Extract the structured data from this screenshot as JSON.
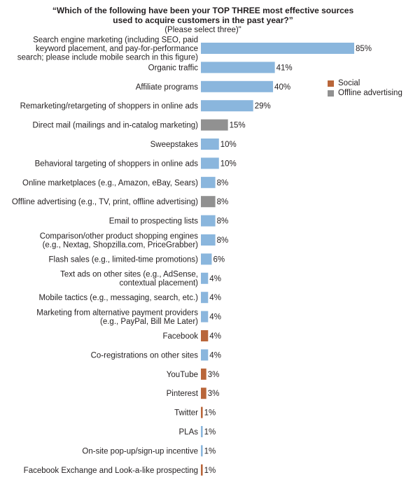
{
  "title_line1": "“Which of the following have been your TOP THREE most effective sources",
  "title_line2": "used to acquire customers in the past year?”",
  "subtitle": "(Please select three)\"",
  "colors": {
    "default": "#8ab6dd",
    "social": "#b9663a",
    "offline": "#919191"
  },
  "legend": [
    {
      "label": "Social",
      "color": "#b9663a"
    },
    {
      "label": "Offline advertising",
      "color": "#919191"
    }
  ],
  "chart_data": {
    "type": "bar",
    "orientation": "horizontal",
    "unit": "%",
    "xlim": [
      0,
      85
    ],
    "grid": false,
    "legend_position": "top-right",
    "bars": [
      {
        "label": [
          "Search engine marketing (including SEO, paid",
          "keyword placement, and pay-for-performance",
          "search; please include mobile search in this figure)"
        ],
        "value": 85,
        "group": "default"
      },
      {
        "label": [
          "Organic traffic"
        ],
        "value": 41,
        "group": "default"
      },
      {
        "label": [
          "Affiliate programs"
        ],
        "value": 40,
        "group": "default"
      },
      {
        "label": [
          "Remarketing/retargeting of shoppers in online ads"
        ],
        "value": 29,
        "group": "default"
      },
      {
        "label": [
          "Direct mail (mailings and in-catalog marketing)"
        ],
        "value": 15,
        "group": "offline"
      },
      {
        "label": [
          "Sweepstakes"
        ],
        "value": 10,
        "group": "default"
      },
      {
        "label": [
          "Behavioral targeting of shoppers in online ads"
        ],
        "value": 10,
        "group": "default"
      },
      {
        "label": [
          "Online marketplaces (e.g., Amazon, eBay, Sears)"
        ],
        "value": 8,
        "group": "default"
      },
      {
        "label": [
          "Offline advertising (e.g., TV, print, offline advertising)"
        ],
        "value": 8,
        "group": "offline"
      },
      {
        "label": [
          "Email to prospecting lists"
        ],
        "value": 8,
        "group": "default"
      },
      {
        "label": [
          "Comparison/other product shopping engines",
          "(e.g., Nextag, Shopzilla.com, PriceGrabber)"
        ],
        "value": 8,
        "group": "default"
      },
      {
        "label": [
          "Flash sales (e.g., limited-time promotions)"
        ],
        "value": 6,
        "group": "default"
      },
      {
        "label": [
          "Text ads on other sites (e.g., AdSense,",
          "contextual placement)"
        ],
        "value": 4,
        "group": "default"
      },
      {
        "label": [
          "Mobile tactics (e.g., messaging, search, etc.)"
        ],
        "value": 4,
        "group": "default"
      },
      {
        "label": [
          "Marketing from alternative payment providers",
          "(e.g., PayPal, Bill Me Later)"
        ],
        "value": 4,
        "group": "default"
      },
      {
        "label": [
          "Facebook"
        ],
        "value": 4,
        "group": "social"
      },
      {
        "label": [
          "Co-registrations on other sites"
        ],
        "value": 4,
        "group": "default"
      },
      {
        "label": [
          "YouTube"
        ],
        "value": 3,
        "group": "social"
      },
      {
        "label": [
          "Pinterest"
        ],
        "value": 3,
        "group": "social"
      },
      {
        "label": [
          "Twitter"
        ],
        "value": 1,
        "group": "social"
      },
      {
        "label": [
          "PLAs"
        ],
        "value": 1,
        "group": "default"
      },
      {
        "label": [
          "On-site pop-up/sign-up incentive"
        ],
        "value": 1,
        "group": "default"
      },
      {
        "label": [
          "Facebook Exchange and Look-a-like prospecting"
        ],
        "value": 1,
        "group": "social"
      }
    ]
  }
}
